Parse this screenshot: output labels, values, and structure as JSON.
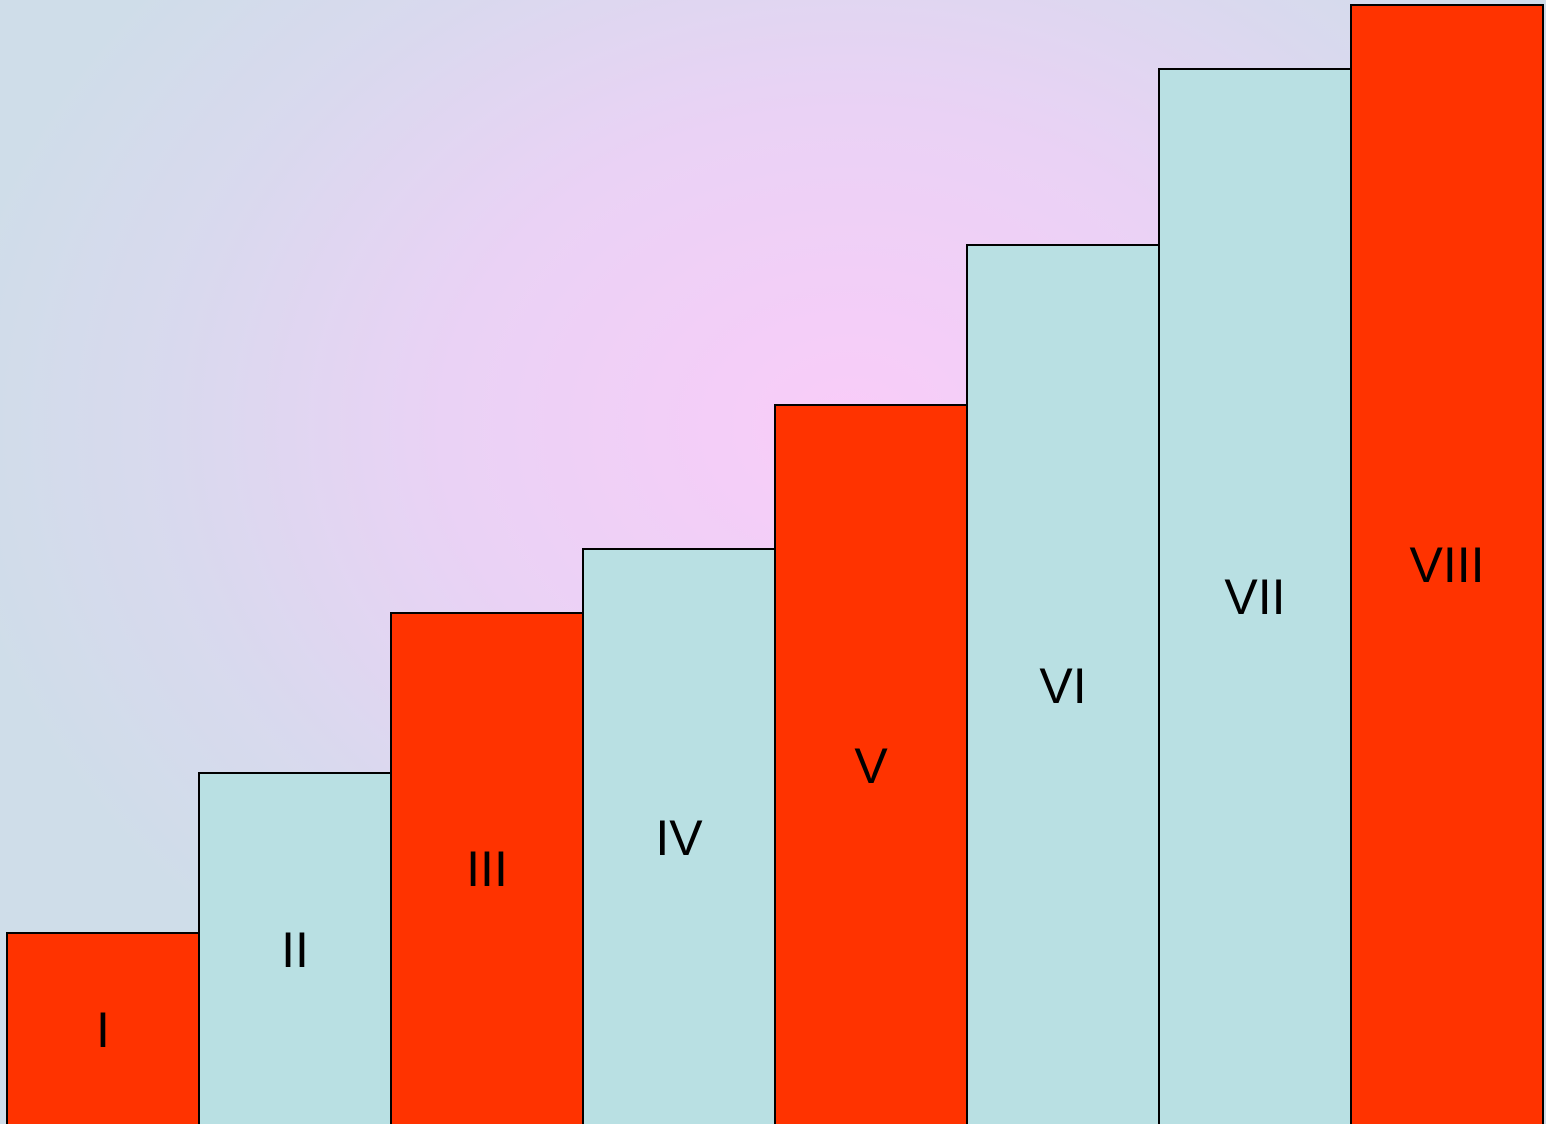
{
  "diagram": {
    "colors": {
      "accent": "#ff3300",
      "alternate": "#b9e0e3",
      "outline": "#000000"
    },
    "steps": [
      {
        "label": "I",
        "level": 1,
        "color": "#ff3300"
      },
      {
        "label": "II",
        "level": 2,
        "color": "#b9e0e3"
      },
      {
        "label": "III",
        "level": 3,
        "color": "#ff3300"
      },
      {
        "label": "IV",
        "level": 4,
        "color": "#b9e0e3"
      },
      {
        "label": "V",
        "level": 5,
        "color": "#ff3300"
      },
      {
        "label": "VI",
        "level": 6,
        "color": "#b9e0e3"
      },
      {
        "label": "VII",
        "level": 7,
        "color": "#b9e0e3"
      },
      {
        "label": "VIII",
        "level": 8,
        "color": "#ff3300"
      }
    ]
  }
}
